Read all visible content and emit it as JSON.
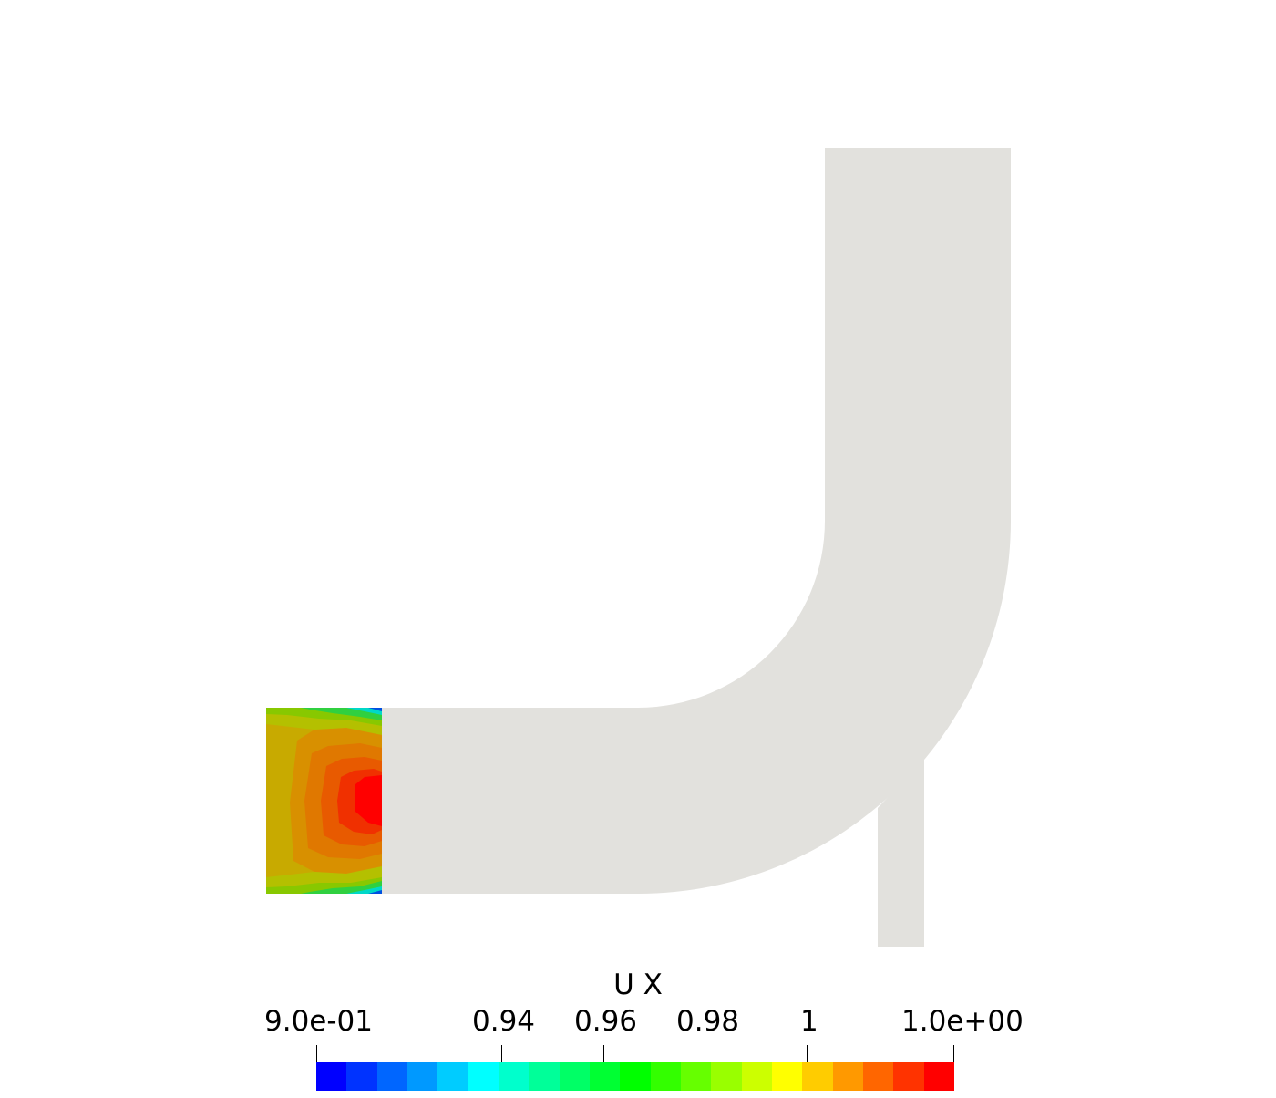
{
  "legend": {
    "title": "U X",
    "ticks": [
      {
        "value": 0.9,
        "label": "9.0e-01"
      },
      {
        "value": 0.94,
        "label": "0.94"
      },
      {
        "value": 0.96,
        "label": "0.96"
      },
      {
        "value": 0.98,
        "label": "0.98"
      },
      {
        "value": 1.0,
        "label": "1"
      },
      {
        "value": 1.02,
        "label": "1.0e+00"
      }
    ],
    "range": [
      0.9,
      1.02
    ],
    "colormap": [
      "#0000ff",
      "#0033ff",
      "#0066ff",
      "#0099ff",
      "#00ccff",
      "#00ffff",
      "#00ffcc",
      "#00ff99",
      "#00ff66",
      "#00ff33",
      "#00ff00",
      "#33ff00",
      "#66ff00",
      "#99ff00",
      "#ccff00",
      "#ffff00",
      "#ffcc00",
      "#ff9900",
      "#ff6600",
      "#ff3300",
      "#ff0000"
    ]
  },
  "colors": {
    "background": "#ffffff",
    "geometry": "#e2e1dd"
  }
}
